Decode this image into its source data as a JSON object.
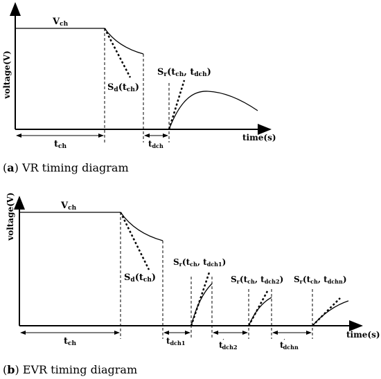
{
  "panel_a": {
    "ylabel": "voltage(V)",
    "xlabel": "time(s)",
    "v_label": "V",
    "v_sub": "ch",
    "sd_label": "S",
    "sd_sub": "d",
    "sd_arg": "(t",
    "sd_arg_sub": "ch",
    "sd_close": ")",
    "sr_label": "S",
    "sr_sub": "r",
    "sr_open": "(t",
    "sr_sub1": "ch",
    "sr_mid": ", t",
    "sr_sub2": "dch",
    "sr_close": ")",
    "tch_label": "t",
    "tch_sub": "ch",
    "tdch_label": "t",
    "tdch_sub": "dch",
    "caption_letter": "a",
    "caption_text": " VR timing diagram"
  },
  "panel_b": {
    "ylabel": "voltage(V)",
    "xlabel": "time(s)",
    "v_label": "V",
    "v_sub": "ch",
    "sd_label": "S",
    "sd_sub": "d",
    "sd_arg": "(t",
    "sd_arg_sub": "ch",
    "sd_close": ")",
    "sr1": {
      "s": "S",
      "r": "r",
      "open": "(t",
      "ch": "ch",
      "mid": ", t",
      "d": "dch1",
      "close": ")"
    },
    "sr2": {
      "s": "S",
      "r": "r",
      "open": "(t",
      "ch": "ch",
      "mid": ", t",
      "d": "dch2",
      "close": ")"
    },
    "sr3": {
      "s": "S",
      "r": "r",
      "open": "(t",
      "ch": "ch",
      "mid": ", t",
      "d": "dchn",
      "close": ")"
    },
    "tch_label": "t",
    "tch_sub": "ch",
    "tdch1_label": "t",
    "tdch1_sub": "dch1",
    "tdch2_label": "t",
    "tdch2_prime": "′",
    "tdch2_sub": "dch2",
    "tdchn_label": "t",
    "tdchn_prime": "′",
    "tdchn_sub": "dchn",
    "caption_letter": "b",
    "caption_text": " EVR timing diagram"
  }
}
